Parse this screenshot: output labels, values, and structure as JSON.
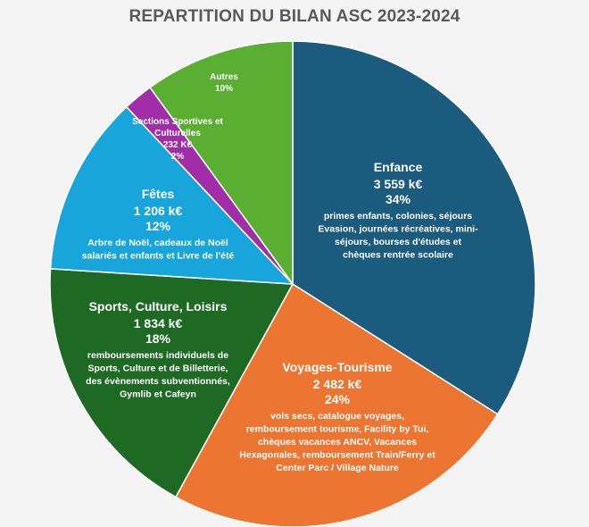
{
  "chart_data": {
    "type": "pie",
    "title": "REPARTITION DU BILAN ASC 2023-2024",
    "slices": [
      {
        "name": "Enfance",
        "amount": "3 559 k€",
        "percent_label": "34%",
        "value": 34,
        "color": "#1a5b7e",
        "details": [
          "primes enfants, colonies, séjours",
          "Evasion, journées récréatives, mini-",
          "séjours, bourses d'études et",
          "chèques rentrée scolaire"
        ]
      },
      {
        "name": "Voyages-Tourisme",
        "amount": "2 482 k€",
        "percent_label": "24%",
        "value": 24,
        "color": "#ed7532",
        "details": [
          "vols secs, catalogue voyages,",
          "remboursement tourisme, Facility by Tui,",
          "chèques vacances ANCV, Vacances",
          "Hexagonales, remboursement Train/Ferry et",
          "Center Parc / Village Nature"
        ]
      },
      {
        "name": "Sports, Culture, Loisirs",
        "amount": "1 834 k€",
        "percent_label": "18%",
        "value": 18,
        "color": "#1e6a24",
        "details": [
          "remboursements individuels de",
          "Sports, Culture et de Billetterie,",
          "des évènements subventionnés,",
          "Gymlib et Cafeyn"
        ]
      },
      {
        "name": "Fêtes",
        "amount": "1 206 k€",
        "percent_label": "12%",
        "value": 12,
        "color": "#17a5dc",
        "details": [
          "Arbre de Noël, cadeaux de Noël",
          "salariés et enfants et Livre de l'été"
        ]
      },
      {
        "name": "Sections Sportives et Culturelles",
        "name_lines": [
          "Sections Sportives et",
          "Culturelles"
        ],
        "amount": "232 K€",
        "percent_label": "2%",
        "value": 2,
        "color": "#a12da8",
        "details": []
      },
      {
        "name": "Autres",
        "amount": "",
        "percent_label": "10%",
        "value": 10,
        "color": "#5aae32",
        "details": []
      }
    ]
  }
}
